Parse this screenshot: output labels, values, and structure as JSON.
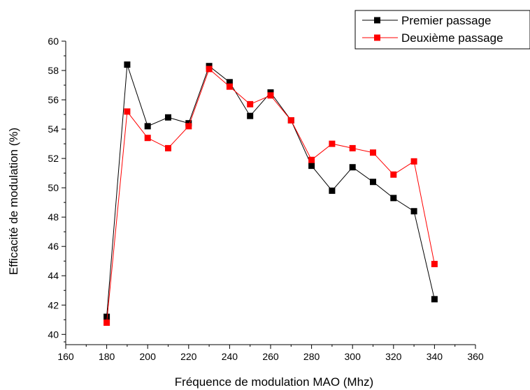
{
  "chart_data": {
    "type": "line",
    "xlabel": "Fréquence de modulation MAO (Mhz)",
    "ylabel": "Efficacité de modulation (%)",
    "xlim": [
      160,
      360
    ],
    "ylim": [
      39.3,
      60
    ],
    "x_ticks": [
      160,
      180,
      200,
      220,
      240,
      260,
      280,
      300,
      320,
      340,
      360
    ],
    "y_ticks": [
      40,
      42,
      44,
      46,
      48,
      50,
      52,
      54,
      56,
      58,
      60
    ],
    "grid": false,
    "legend_position": "top-right",
    "series": [
      {
        "name": "Premier passage",
        "color": "#000000",
        "marker": "square",
        "x": [
          180,
          190,
          200,
          210,
          220,
          230,
          240,
          250,
          260,
          270,
          280,
          290,
          300,
          310,
          320,
          330,
          340
        ],
        "values": [
          41.2,
          58.4,
          54.2,
          54.8,
          54.4,
          58.3,
          57.2,
          54.9,
          56.5,
          54.6,
          51.5,
          49.8,
          51.4,
          50.4,
          49.3,
          48.4,
          42.4
        ]
      },
      {
        "name": "Deuxième passage",
        "color": "#ff0000",
        "marker": "square",
        "x": [
          180,
          190,
          200,
          210,
          220,
          230,
          240,
          250,
          260,
          270,
          280,
          290,
          300,
          310,
          320,
          330,
          340
        ],
        "values": [
          40.8,
          55.2,
          53.4,
          52.7,
          54.2,
          58.1,
          56.9,
          55.7,
          56.3,
          54.6,
          51.9,
          53.0,
          52.7,
          52.4,
          50.9,
          51.8,
          44.8
        ]
      }
    ]
  }
}
